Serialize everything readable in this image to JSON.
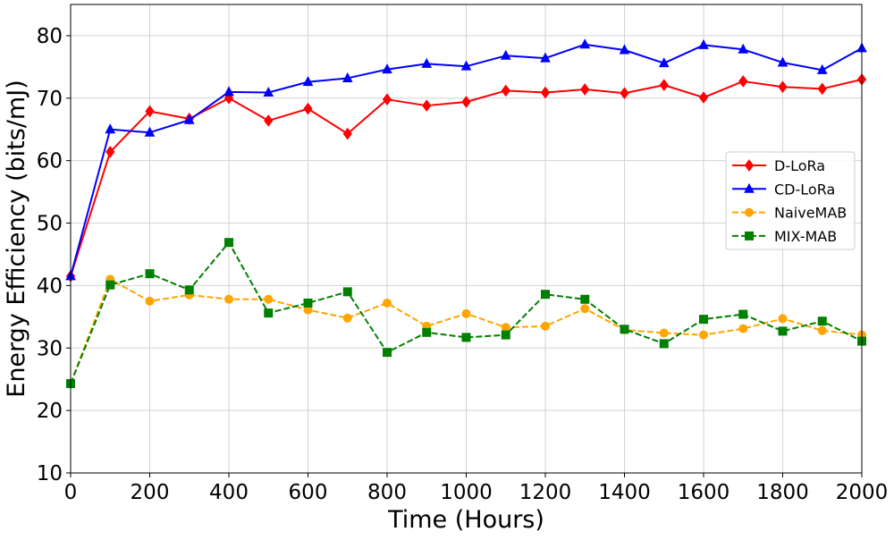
{
  "chart_data": {
    "type": "line",
    "title": "",
    "xlabel": "Time (Hours)",
    "ylabel": "Energy Efficiency (bits/mJ)",
    "xlim": [
      0,
      2000
    ],
    "ylim": [
      10,
      85
    ],
    "xticks": [
      "0",
      "200",
      "400",
      "600",
      "800",
      "1000",
      "1200",
      "1400",
      "1600",
      "1800",
      "2000"
    ],
    "yticks": [
      "10",
      "20",
      "30",
      "40",
      "50",
      "60",
      "70",
      "80"
    ],
    "grid": true,
    "legend_position": "center-right",
    "x": [
      0,
      100,
      200,
      300,
      400,
      500,
      600,
      700,
      800,
      900,
      1000,
      1100,
      1200,
      1300,
      1400,
      1500,
      1600,
      1700,
      1800,
      1900,
      2000
    ],
    "series": [
      {
        "name": "D-LoRa",
        "color": "#ff0000",
        "line_style": "solid",
        "marker": "diamond",
        "values": [
          41.5,
          61.4,
          67.9,
          66.7,
          70.0,
          66.4,
          68.3,
          64.3,
          69.8,
          68.8,
          69.4,
          71.2,
          70.9,
          71.4,
          70.8,
          72.1,
          70.1,
          72.7,
          71.8,
          71.5,
          73.0
        ]
      },
      {
        "name": "CD-LoRa",
        "color": "#0000ff",
        "line_style": "solid",
        "marker": "triangle",
        "values": [
          41.5,
          65.0,
          64.5,
          66.5,
          71.0,
          70.9,
          72.6,
          73.2,
          74.6,
          75.5,
          75.1,
          76.8,
          76.4,
          78.6,
          77.7,
          75.6,
          78.5,
          77.8,
          75.7,
          74.5,
          78.0
        ]
      },
      {
        "name": "NaiveMAB",
        "color": "#ffa500",
        "line_style": "dashed",
        "marker": "circle",
        "values": [
          24.3,
          41.0,
          37.5,
          38.5,
          37.8,
          37.8,
          36.1,
          34.8,
          37.2,
          33.5,
          35.5,
          33.3,
          33.5,
          36.3,
          32.9,
          32.4,
          32.1,
          33.1,
          34.7,
          32.8,
          32.1
        ]
      },
      {
        "name": "MIX-MAB",
        "color": "#008000",
        "line_style": "dashed",
        "marker": "square",
        "values": [
          24.3,
          40.1,
          41.9,
          39.3,
          46.9,
          35.6,
          37.2,
          39.0,
          29.3,
          32.5,
          31.7,
          32.1,
          38.6,
          37.8,
          33.0,
          30.7,
          34.6,
          35.4,
          32.7,
          34.3,
          31.1
        ]
      }
    ]
  }
}
